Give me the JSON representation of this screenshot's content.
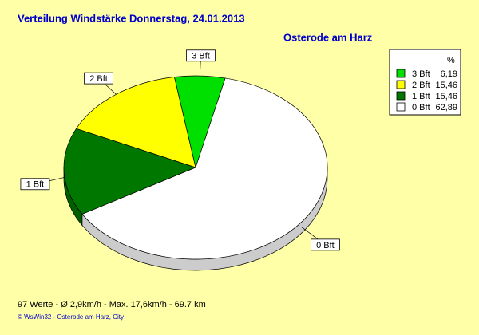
{
  "chart_data": {
    "type": "pie",
    "title": "Verteilung Windstärke  Donnerstag, 24.01.2013",
    "subtitle": "Osterode am Harz",
    "categories": [
      "3 Bft",
      "2 Bft",
      "1 Bft",
      "0 Bft"
    ],
    "values": [
      6.19,
      15.46,
      15.46,
      62.89
    ],
    "value_labels": [
      "6,19",
      "15,46",
      "15,46",
      "62,89"
    ],
    "colors": [
      "#00e000",
      "#ffff00",
      "#007800",
      "#ffffff"
    ],
    "legend_title": "%",
    "footer": "97 Werte   -   Ø 2,9km/h  -  Max. 17,6km/h   -   69.7 km",
    "credit": "© WsWin32  -  Osterode am Harz, City"
  }
}
